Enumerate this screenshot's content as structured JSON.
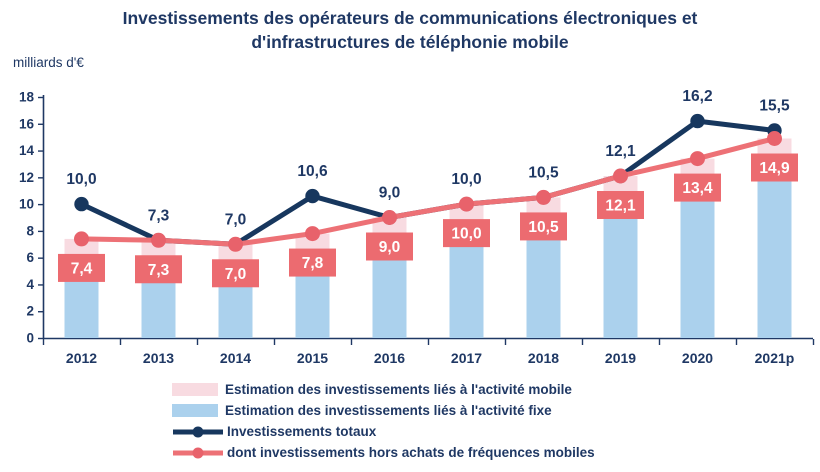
{
  "title": {
    "line1": "Investissements des opérateurs de communications électroniques et",
    "line2": "d'infrastructures de téléphonie mobile"
  },
  "unit_label": "milliards d'€",
  "colors": {
    "navy_text": "#1F3864",
    "total_line": "#17375E",
    "hors_freq_line": "#ED7176",
    "hors_freq_dot": "#E8626B",
    "value_badge_bg": "#EC6B70",
    "value_badge_text": "#FFFFFF",
    "bar_mobile": "#F8DBE1",
    "bar_fixe": "#ABD1ED",
    "axis": "#1F3864",
    "background": "#FFFFFF"
  },
  "chart_data": {
    "type": "bar+line",
    "title": "Investissements des opérateurs de communications électroniques et d'infrastructures de téléphonie mobile",
    "ylabel": "milliards d'€",
    "xlabel": "",
    "grid": false,
    "legend_position": "bottom",
    "categories": [
      "2012",
      "2013",
      "2014",
      "2015",
      "2016",
      "2017",
      "2018",
      "2019",
      "2020",
      "2021p"
    ],
    "y_axis": {
      "min": 0,
      "max": 18,
      "step": 2,
      "tick_labels": [
        "0",
        "2",
        "4",
        "6",
        "8",
        "10",
        "12",
        "14",
        "16",
        "18"
      ]
    },
    "series": [
      {
        "name": "Estimation des investissements liés à l'activité mobile",
        "type": "bar-stack-top",
        "color": "#F8DBE1",
        "values_estimated": [
          2.9,
          2.8,
          2.7,
          2.9,
          3.1,
          3.0,
          3.0,
          3.1,
          3.0,
          3.0
        ]
      },
      {
        "name": "Estimation des investissements liés à l'activité fixe",
        "type": "bar-stack-bottom",
        "color": "#ABD1ED",
        "values_estimated": [
          4.5,
          4.5,
          4.3,
          4.9,
          5.9,
          7.0,
          7.5,
          9.0,
          10.4,
          11.9
        ]
      },
      {
        "name": "Investissements totaux",
        "type": "line",
        "color": "#17375E",
        "dot_color": "#17375E",
        "values": [
          10.0,
          7.3,
          7.0,
          10.6,
          9.0,
          10.0,
          10.5,
          12.1,
          16.2,
          15.5
        ],
        "labels": [
          "10,0",
          "7,3",
          "7,0",
          "10,6",
          "9,0",
          "10,0",
          "10,5",
          "12,1",
          "16,2",
          "15,5"
        ]
      },
      {
        "name": "dont investissements hors achats de fréquences mobiles",
        "type": "line",
        "color": "#ED7176",
        "dot_color": "#E8626B",
        "values": [
          7.4,
          7.3,
          7.0,
          7.8,
          9.0,
          10.0,
          10.5,
          12.1,
          13.4,
          14.9
        ],
        "labels": [
          "7,4",
          "7,3",
          "7,0",
          "7,8",
          "9,0",
          "10,0",
          "10,5",
          "12,1",
          "13,4",
          "14,9"
        ]
      }
    ]
  }
}
